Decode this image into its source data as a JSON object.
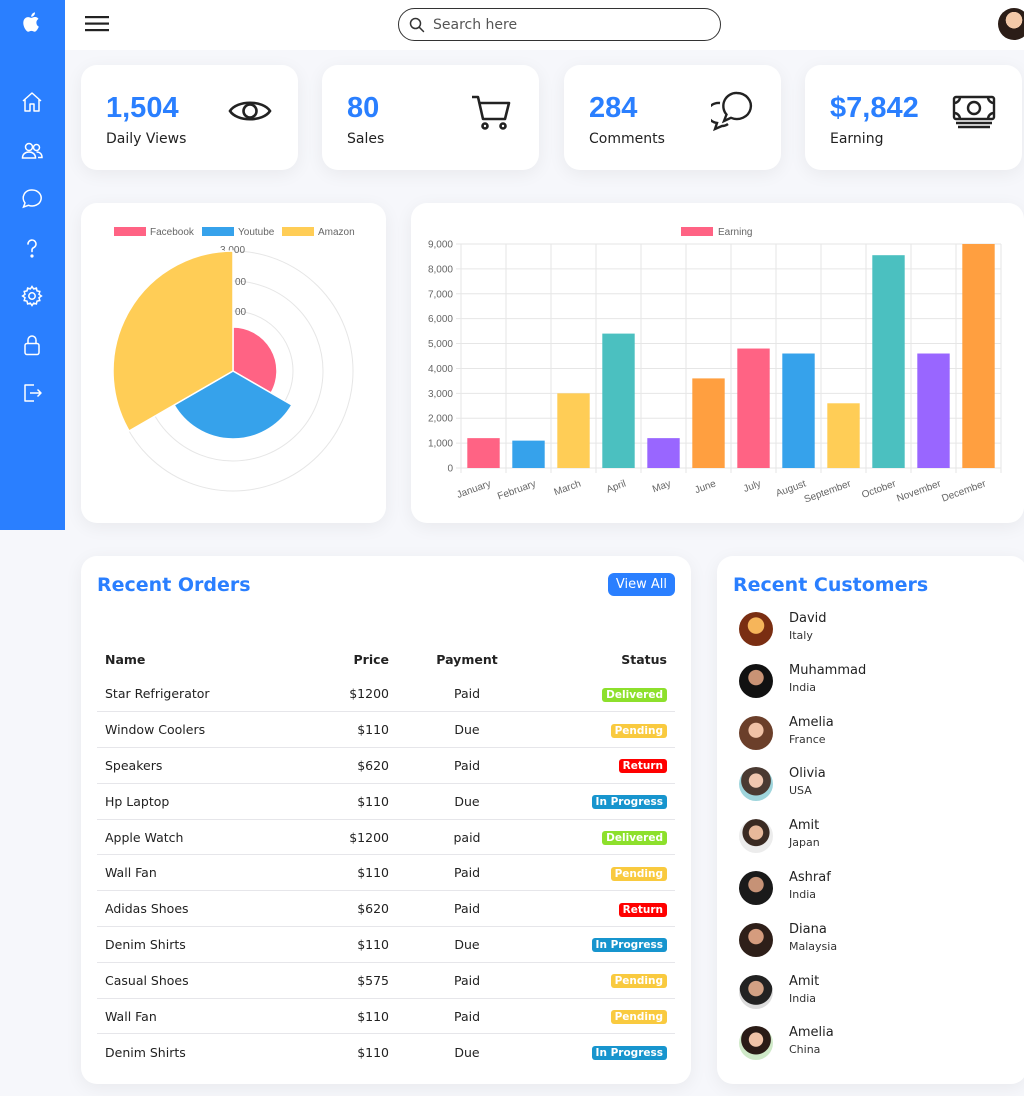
{
  "topbar": {
    "search_placeholder": "Search here"
  },
  "sidebar": {
    "items": [
      {
        "name": "home-icon"
      },
      {
        "name": "users-icon"
      },
      {
        "name": "chat-icon"
      },
      {
        "name": "help-icon"
      },
      {
        "name": "settings-icon"
      },
      {
        "name": "lock-icon"
      },
      {
        "name": "logout-icon"
      }
    ]
  },
  "stats": [
    {
      "value": "1,504",
      "label": "Daily Views",
      "icon": "eye-icon"
    },
    {
      "value": "80",
      "label": "Sales",
      "icon": "cart-icon"
    },
    {
      "value": "284",
      "label": "Comments",
      "icon": "comments-icon"
    },
    {
      "value": "$7,842",
      "label": "Earning",
      "icon": "cash-icon"
    }
  ],
  "chart_data": [
    {
      "type": "polarArea",
      "legend_position": "top",
      "categories": [
        "Facebook",
        "Youtube",
        "Amazon"
      ],
      "values": [
        1100,
        1700,
        3000
      ],
      "colors": [
        "#ff6384",
        "#36a2eb",
        "#ffcd56"
      ],
      "r_ticks": [
        "3,000"
      ]
    },
    {
      "type": "bar",
      "legend_position": "top",
      "series": [
        {
          "name": "Earning",
          "values": [
            1200,
            1100,
            3000,
            5400,
            1200,
            3600,
            4800,
            4600,
            2600,
            8550,
            4600,
            9000
          ]
        }
      ],
      "categories": [
        "January",
        "February",
        "March",
        "April",
        "May",
        "June",
        "July",
        "August",
        "September",
        "October",
        "November",
        "December"
      ],
      "colors": [
        "#ff6384",
        "#36a2eb",
        "#ffcd56",
        "#4bc0c0",
        "#9966ff",
        "#ff9f40",
        "#ff6384",
        "#36a2eb",
        "#ffcd56",
        "#4bc0c0",
        "#9966ff",
        "#ff9f40"
      ],
      "ylim": [
        0,
        9000
      ],
      "y_ticks": [
        "0",
        "1,000",
        "2,000",
        "3,000",
        "4,000",
        "5,000",
        "6,000",
        "7,000",
        "8,000",
        "9,000"
      ]
    }
  ],
  "orders": {
    "title": "Recent Orders",
    "view_all": "View All",
    "columns": [
      "Name",
      "Price",
      "Payment",
      "Status"
    ],
    "rows": [
      {
        "name": "Star Refrigerator",
        "price": "$1200",
        "payment": "Paid",
        "status": "Delivered"
      },
      {
        "name": "Window Coolers",
        "price": "$110",
        "payment": "Due",
        "status": "Pending"
      },
      {
        "name": "Speakers",
        "price": "$620",
        "payment": "Paid",
        "status": "Return"
      },
      {
        "name": "Hp Laptop",
        "price": "$110",
        "payment": "Due",
        "status": "In Progress"
      },
      {
        "name": "Apple Watch",
        "price": "$1200",
        "payment": "paid",
        "status": "Delivered"
      },
      {
        "name": "Wall Fan",
        "price": "$110",
        "payment": "Paid",
        "status": "Pending"
      },
      {
        "name": "Adidas Shoes",
        "price": "$620",
        "payment": "Paid",
        "status": "Return"
      },
      {
        "name": "Denim Shirts",
        "price": "$110",
        "payment": "Due",
        "status": "In Progress"
      },
      {
        "name": "Casual Shoes",
        "price": "$575",
        "payment": "Paid",
        "status": "Pending"
      },
      {
        "name": "Wall Fan",
        "price": "$110",
        "payment": "Paid",
        "status": "Pending"
      },
      {
        "name": "Denim Shirts",
        "price": "$110",
        "payment": "Due",
        "status": "In Progress"
      }
    ],
    "status_colors": {
      "Delivered": "#8de02c",
      "Pending": "#f9ca3f",
      "Return": "#f00",
      "In Progress": "#1795ce"
    }
  },
  "customers": {
    "title": "Recent Customers",
    "list": [
      {
        "name": "David",
        "country": "Italy"
      },
      {
        "name": "Muhammad",
        "country": "India"
      },
      {
        "name": "Amelia",
        "country": "France"
      },
      {
        "name": "Olivia",
        "country": "USA"
      },
      {
        "name": "Amit",
        "country": "Japan"
      },
      {
        "name": "Ashraf",
        "country": "India"
      },
      {
        "name": "Diana",
        "country": "Malaysia"
      },
      {
        "name": "Amit",
        "country": "India"
      },
      {
        "name": "Amelia",
        "country": "China"
      }
    ]
  }
}
